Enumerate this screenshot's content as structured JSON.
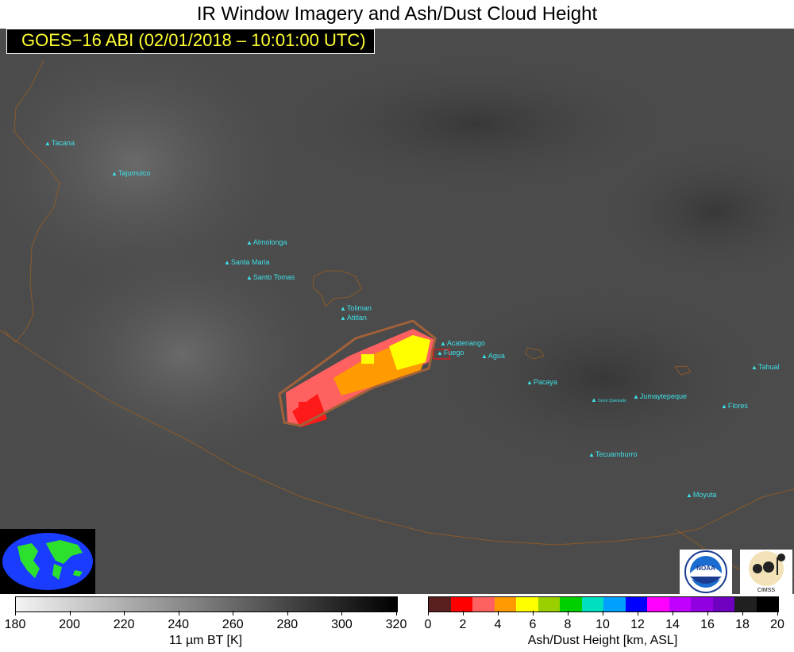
{
  "title": "IR Window Imagery and Ash/Dust Cloud Height",
  "subtitle": "GOES−16 ABI (02/01/2018 – 10:01:00 UTC)",
  "volcanoes": [
    {
      "name": "Tacana"
    },
    {
      "name": "Tajumulco"
    },
    {
      "name": "Almolonga"
    },
    {
      "name": "Santa Maria"
    },
    {
      "name": "Santo Tomas"
    },
    {
      "name": "Toliman"
    },
    {
      "name": "Atitlan"
    },
    {
      "name": "Acatenango"
    },
    {
      "name": "Fuego"
    },
    {
      "name": "Agua"
    },
    {
      "name": "Pacaya"
    },
    {
      "name": "Cerro Quemado"
    },
    {
      "name": "Jumaytepeque"
    },
    {
      "name": "Flores"
    },
    {
      "name": "Tahual"
    },
    {
      "name": "Tecuamburro"
    },
    {
      "name": "Moyuta"
    }
  ],
  "colorbar_bt": {
    "label": "11 µm BT [K]",
    "ticks": [
      "180",
      "200",
      "220",
      "240",
      "260",
      "280",
      "300",
      "320"
    ],
    "range": [
      180,
      320
    ]
  },
  "colorbar_height": {
    "label": "Ash/Dust Height [km, ASL]",
    "ticks": [
      "0",
      "2",
      "4",
      "6",
      "8",
      "10",
      "12",
      "14",
      "16",
      "18",
      "20"
    ],
    "range": [
      0,
      20
    ],
    "colors": [
      "#5a1f1f",
      "#ff0000",
      "#ff6060",
      "#ff9a00",
      "#ffff00",
      "#9ad000",
      "#00d000",
      "#00e0c0",
      "#00a0ff",
      "#0000ff",
      "#ff00ff",
      "#c000ff",
      "#9000e0",
      "#7000c0",
      "#202020",
      "#000000"
    ]
  },
  "logos": {
    "noaa": "NOAA",
    "cimss": "CIMSS"
  }
}
